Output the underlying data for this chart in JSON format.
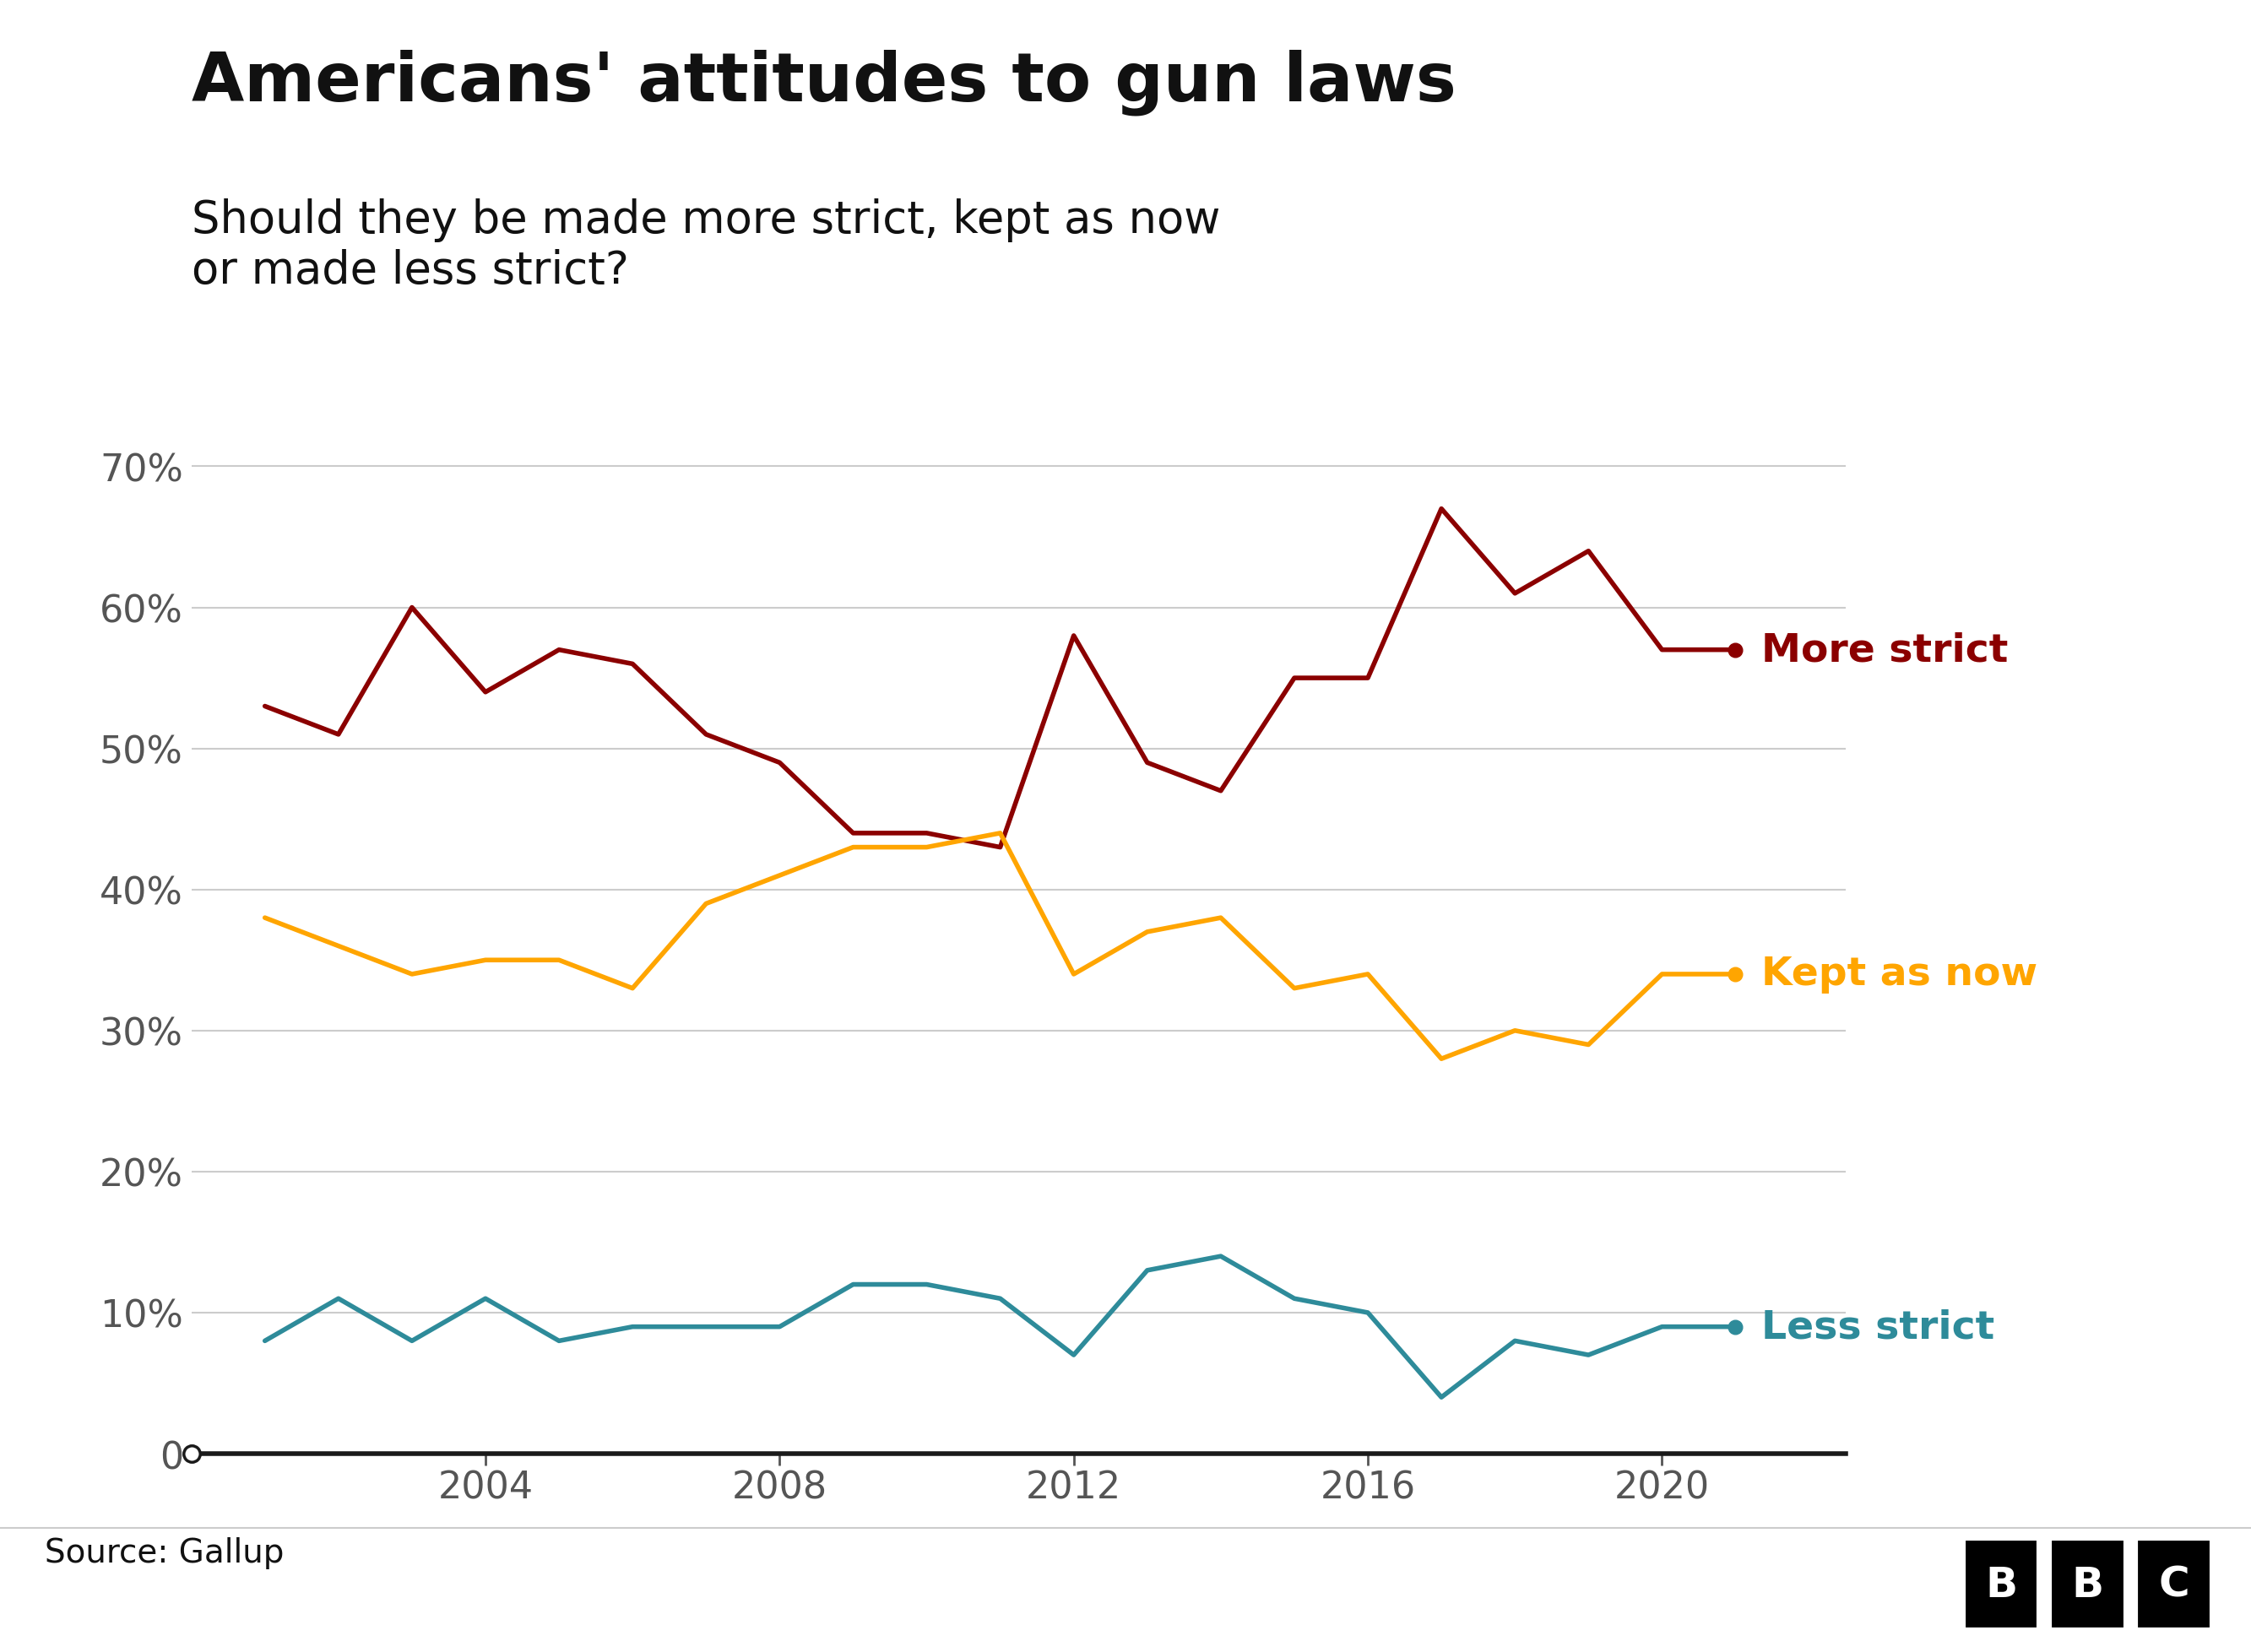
{
  "title": "Americans' attitudes to gun laws",
  "subtitle": "Should they be made more strict, kept as now\nor made less strict?",
  "source": "Source: Gallup",
  "more_strict": {
    "label": "More strict",
    "color": "#8B0000",
    "years": [
      2001,
      2002,
      2003,
      2004,
      2005,
      2006,
      2007,
      2008,
      2009,
      2010,
      2011,
      2012,
      2013,
      2014,
      2015,
      2016,
      2017,
      2018,
      2019,
      2020,
      2021
    ],
    "values": [
      53,
      51,
      60,
      54,
      57,
      56,
      51,
      49,
      44,
      44,
      43,
      58,
      49,
      47,
      55,
      55,
      67,
      61,
      64,
      57,
      57
    ]
  },
  "kept_as_now": {
    "label": "Kept as now",
    "color": "#FFA500",
    "years": [
      2001,
      2002,
      2003,
      2004,
      2005,
      2006,
      2007,
      2008,
      2009,
      2010,
      2011,
      2012,
      2013,
      2014,
      2015,
      2016,
      2017,
      2018,
      2019,
      2020,
      2021
    ],
    "values": [
      38,
      36,
      34,
      35,
      35,
      33,
      39,
      41,
      43,
      43,
      44,
      34,
      37,
      38,
      33,
      34,
      28,
      30,
      29,
      34,
      34
    ]
  },
  "less_strict": {
    "label": "Less strict",
    "color": "#2E8B9A",
    "years": [
      2001,
      2002,
      2003,
      2004,
      2005,
      2006,
      2007,
      2008,
      2009,
      2010,
      2011,
      2012,
      2013,
      2014,
      2015,
      2016,
      2017,
      2018,
      2019,
      2020,
      2021
    ],
    "values": [
      8,
      11,
      8,
      11,
      8,
      9,
      9,
      9,
      12,
      12,
      11,
      7,
      13,
      14,
      11,
      10,
      4,
      8,
      7,
      9,
      9
    ]
  },
  "xlim": [
    2000,
    2022.5
  ],
  "ylim": [
    0,
    75
  ],
  "yticks": [
    0,
    10,
    20,
    30,
    40,
    50,
    60,
    70
  ],
  "xticks": [
    2004,
    2008,
    2012,
    2016,
    2020
  ],
  "background_color": "#ffffff",
  "grid_color": "#cccccc",
  "axis_color": "#1a1a1a",
  "title_fontsize": 58,
  "subtitle_fontsize": 38,
  "tick_fontsize": 32,
  "label_fontsize": 34,
  "source_fontsize": 28,
  "line_width": 4.0
}
